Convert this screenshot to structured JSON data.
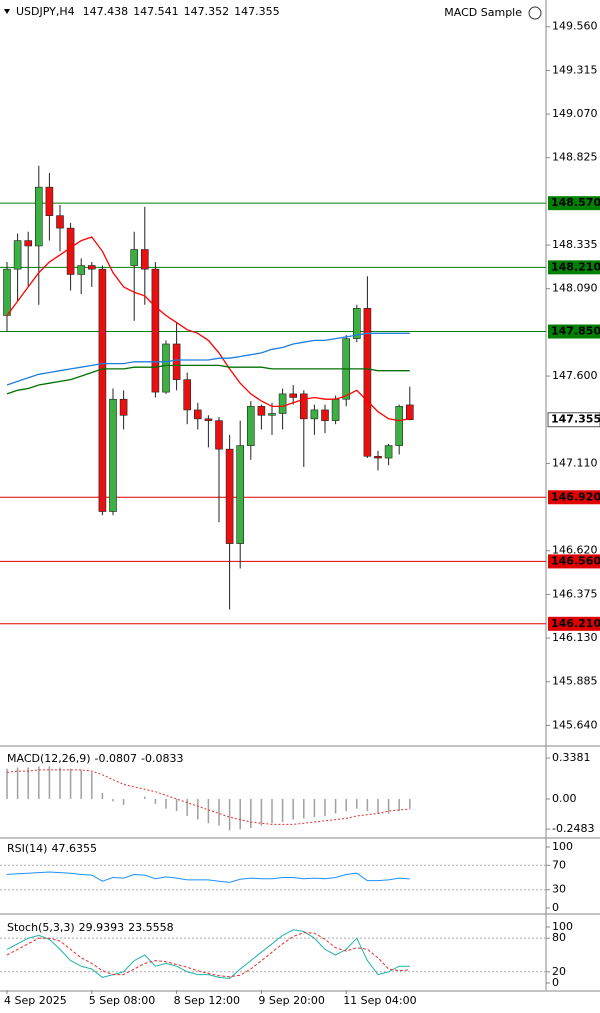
{
  "chart_data": [
    {
      "type": "candlestick",
      "title": "USDJPY,H4",
      "expert": "MACD Sample",
      "categories": [
        "4 Sep 2025",
        null,
        null,
        null,
        null,
        null,
        null,
        null,
        "5 Sep 08:00",
        null,
        null,
        null,
        null,
        null,
        null,
        null,
        "8 Sep 12:00",
        null,
        null,
        null,
        null,
        null,
        null,
        null,
        "9 Sep 20:00",
        null,
        null,
        null,
        null,
        null,
        null,
        null,
        "11 Sep 04:00",
        null,
        null,
        null,
        null,
        null,
        null
      ],
      "open": [
        147.94,
        148.2,
        148.36,
        148.33,
        148.66,
        148.5,
        148.43,
        148.17,
        148.22,
        148.2,
        146.84,
        147.47,
        148.22,
        148.31,
        148.2,
        147.51,
        147.78,
        147.58,
        147.41,
        147.36,
        147.35,
        147.19,
        146.66,
        147.21,
        147.43,
        147.38,
        147.39,
        147.5,
        147.5,
        147.36,
        147.41,
        147.35,
        147.47,
        147.81,
        147.98,
        147.15,
        147.14,
        147.21,
        147.438
      ],
      "high": [
        148.24,
        148.4,
        148.41,
        148.78,
        148.74,
        148.56,
        148.46,
        148.26,
        148.24,
        148.22,
        147.53,
        147.52,
        148.41,
        148.55,
        148.24,
        147.8,
        147.9,
        147.62,
        147.45,
        147.38,
        147.37,
        147.27,
        147.35,
        147.46,
        147.44,
        147.45,
        147.53,
        147.55,
        147.52,
        147.44,
        147.44,
        147.49,
        147.83,
        148.0,
        148.16,
        147.18,
        147.22,
        147.44,
        147.541
      ],
      "low": [
        147.85,
        148.02,
        148.1,
        148.0,
        148.36,
        148.3,
        148.08,
        148.06,
        148.1,
        146.82,
        146.82,
        147.3,
        147.91,
        148.0,
        147.48,
        147.5,
        147.52,
        147.33,
        147.3,
        147.2,
        146.78,
        146.29,
        146.52,
        147.13,
        147.3,
        147.27,
        147.3,
        147.44,
        147.09,
        147.27,
        147.28,
        147.33,
        147.43,
        147.79,
        147.14,
        147.07,
        147.1,
        147.16,
        147.352
      ],
      "close": [
        148.2,
        148.36,
        148.33,
        148.66,
        148.5,
        148.43,
        148.17,
        148.22,
        148.2,
        146.84,
        147.47,
        147.38,
        148.31,
        148.2,
        147.51,
        147.78,
        147.58,
        147.41,
        147.36,
        147.35,
        147.19,
        146.66,
        147.21,
        147.43,
        147.38,
        147.39,
        147.5,
        147.48,
        147.36,
        147.41,
        147.35,
        147.47,
        147.81,
        147.98,
        147.15,
        147.14,
        147.21,
        147.43,
        147.355
      ],
      "up_color": "#3cb043",
      "down_color": "#e81010",
      "ma": [
        {
          "color": "#ff0000",
          "values": [
            147.94,
            148.02,
            148.1,
            148.18,
            148.24,
            148.28,
            148.32,
            148.36,
            148.38,
            148.3,
            148.18,
            148.1,
            148.07,
            148.05,
            147.99,
            147.94,
            147.9,
            147.86,
            147.84,
            147.8,
            147.73,
            147.64,
            147.56,
            147.5,
            147.46,
            147.43,
            147.43,
            147.45,
            147.47,
            147.48,
            147.47,
            147.47,
            147.49,
            147.52,
            147.46,
            147.4,
            147.36,
            147.35,
            147.36
          ]
        },
        {
          "color": "#1e7fe0",
          "values": [
            147.55,
            147.57,
            147.59,
            147.61,
            147.62,
            147.63,
            147.64,
            147.65,
            147.66,
            147.67,
            147.67,
            147.67,
            147.68,
            147.68,
            147.68,
            147.68,
            147.69,
            147.69,
            147.69,
            147.69,
            147.7,
            147.7,
            147.71,
            147.72,
            147.73,
            147.75,
            147.76,
            147.78,
            147.79,
            147.8,
            147.8,
            147.81,
            147.82,
            147.83,
            147.84,
            147.84,
            147.84,
            147.84,
            147.84
          ]
        },
        {
          "color": "#007000",
          "values": [
            147.5,
            147.52,
            147.53,
            147.55,
            147.56,
            147.57,
            147.58,
            147.6,
            147.62,
            147.64,
            147.64,
            147.64,
            147.65,
            147.65,
            147.65,
            147.66,
            147.66,
            147.66,
            147.66,
            147.66,
            147.66,
            147.65,
            147.65,
            147.65,
            147.65,
            147.64,
            147.64,
            147.64,
            147.64,
            147.64,
            147.64,
            147.64,
            147.64,
            147.64,
            147.64,
            147.63,
            147.63,
            147.63,
            147.63
          ]
        }
      ],
      "levels": [
        {
          "value": 148.57,
          "label": "148.570",
          "color": "#008000"
        },
        {
          "value": 148.21,
          "label": "148.210",
          "color": "#008000"
        },
        {
          "value": 147.85,
          "label": "147.850",
          "color": "#008000"
        },
        {
          "value": 146.92,
          "label": "146.920",
          "color": "#e00000"
        },
        {
          "value": 146.56,
          "label": "146.560",
          "color": "#e00000"
        },
        {
          "value": 146.21,
          "label": "146.210",
          "color": "#e00000"
        }
      ],
      "ylim": [
        145.53,
        149.71
      ],
      "yticks": [
        {
          "value": 149.56,
          "label": "149.560"
        },
        149.315,
        {
          "value": 149.07,
          "label": "149.070"
        },
        148.825,
        148.335,
        {
          "value": 148.09,
          "label": "148.090"
        },
        {
          "value": 147.6,
          "label": "147.600"
        },
        {
          "value": 147.11,
          "label": "147.110"
        },
        {
          "value": 146.62,
          "label": "146.620"
        },
        146.375,
        {
          "value": 146.13,
          "label": "146.130"
        },
        145.885,
        {
          "value": 145.64,
          "label": "145.640"
        }
      ]
    },
    {
      "type": "macd",
      "title": "MACD(12,26,9)",
      "color": "#a0a0a0",
      "signal_color": "#e03030",
      "values": [
        0.25,
        0.26,
        0.26,
        0.27,
        0.27,
        0.26,
        0.25,
        0.24,
        0.22,
        0.05,
        -0.02,
        -0.05,
        0.0,
        0.02,
        -0.04,
        -0.08,
        -0.1,
        -0.14,
        -0.17,
        -0.2,
        -0.22,
        -0.26,
        -0.25,
        -0.24,
        -0.22,
        -0.2,
        -0.19,
        -0.17,
        -0.16,
        -0.15,
        -0.14,
        -0.12,
        -0.1,
        -0.08,
        -0.1,
        -0.12,
        -0.12,
        -0.1,
        -0.0807
      ],
      "signal": [
        0.22,
        0.23,
        0.23,
        0.24,
        0.24,
        0.24,
        0.24,
        0.24,
        0.23,
        0.2,
        0.16,
        0.12,
        0.1,
        0.08,
        0.06,
        0.03,
        0.0,
        -0.03,
        -0.06,
        -0.09,
        -0.12,
        -0.15,
        -0.17,
        -0.19,
        -0.2,
        -0.21,
        -0.21,
        -0.21,
        -0.2,
        -0.19,
        -0.18,
        -0.17,
        -0.16,
        -0.14,
        -0.13,
        -0.12,
        -0.1,
        -0.09,
        -0.0833
      ],
      "ylim": [
        -0.314,
        0.421
      ],
      "yticks": [
        0.3381,
        {
          "value": 0,
          "label": "0.00"
        },
        -0.2483
      ]
    },
    {
      "type": "line",
      "title": "RSI(14)",
      "color": "#1e90ff",
      "values": [
        55,
        56,
        57,
        58,
        59,
        58,
        57,
        55,
        54,
        44,
        50,
        49,
        55,
        54,
        48,
        51,
        49,
        46,
        46,
        46,
        44,
        42,
        47,
        49,
        48,
        48,
        50,
        50,
        48,
        49,
        48,
        50,
        55,
        57,
        45,
        45,
        46,
        49,
        47.6355
      ],
      "levels": [
        70,
        30
      ],
      "ylim": [
        -8.2,
        111.5
      ],
      "yticks": [
        100,
        70,
        30,
        0
      ]
    },
    {
      "type": "stochastic",
      "title": "Stoch(5,3,3)",
      "color": "#20b2aa",
      "signal_color": "#e03030",
      "values": [
        60,
        70,
        80,
        85,
        78,
        60,
        40,
        30,
        25,
        10,
        15,
        20,
        40,
        50,
        30,
        35,
        30,
        20,
        15,
        15,
        10,
        8,
        25,
        40,
        55,
        70,
        85,
        95,
        92,
        80,
        60,
        50,
        60,
        80,
        40,
        15,
        20,
        30,
        29.9393
      ],
      "signal": [
        50,
        60,
        70,
        80,
        80,
        75,
        60,
        45,
        35,
        22,
        15,
        15,
        25,
        35,
        40,
        38,
        33,
        28,
        22,
        17,
        13,
        11,
        14,
        25,
        40,
        55,
        70,
        83,
        90,
        89,
        78,
        63,
        57,
        63,
        60,
        45,
        25,
        22,
        23.5558
      ],
      "levels": [
        80,
        20
      ],
      "ylim": [
        -12.5,
        119.6
      ],
      "yticks": [
        100,
        80,
        20,
        0
      ]
    }
  ]
}
